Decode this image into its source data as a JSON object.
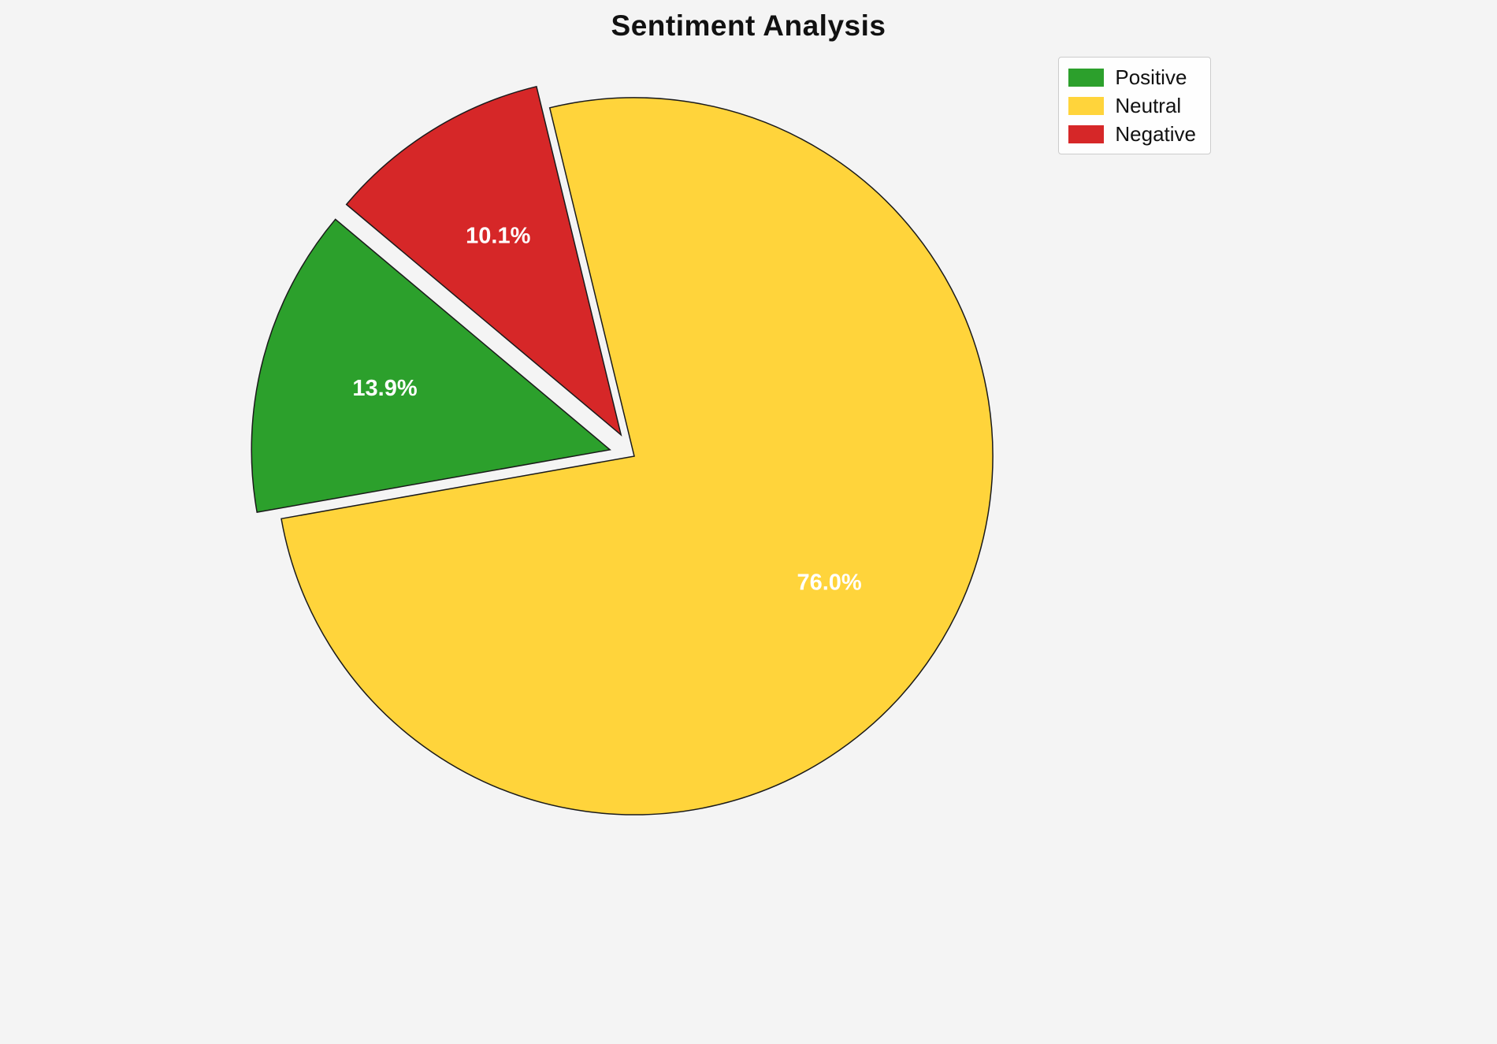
{
  "chart_data": {
    "type": "pie",
    "title": "Sentiment Analysis",
    "labels": [
      "Positive",
      "Neutral",
      "Negative"
    ],
    "values": [
      13.9,
      76.0,
      10.1
    ],
    "pct_labels": [
      "13.9%",
      "76.0%",
      "10.1%"
    ],
    "colors": [
      "#2ca02c",
      "#ffd43b",
      "#d62728"
    ],
    "explode": [
      0.07,
      0,
      0.07
    ],
    "start_angle": 140,
    "counterclockwise": true,
    "edge_color": "#1a1a1a",
    "slice_label_color": "#ffffff",
    "legend": {
      "position": "upper right",
      "entries": [
        "Positive",
        "Neutral",
        "Negative"
      ]
    }
  }
}
